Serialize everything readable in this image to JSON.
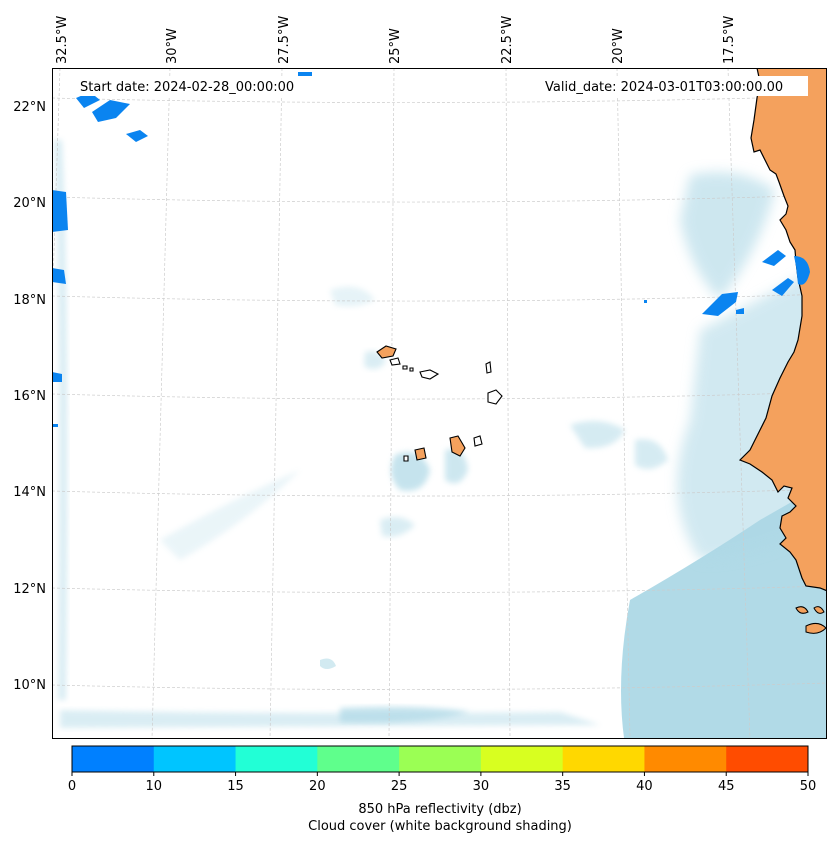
{
  "header": {
    "start_date": "Start date: 2024-02-28_00:00:00",
    "valid_date": "Valid_date: 2024-03-01T03:00:00.00"
  },
  "axes": {
    "top_labels": [
      "32.5°W",
      "30°W",
      "27.5°W",
      "25°W",
      "22.5°W",
      "20°W",
      "17.5°W"
    ],
    "left_labels": [
      "22°N",
      "20°N",
      "18°N",
      "16°N",
      "14°N",
      "12°N",
      "10°N"
    ]
  },
  "colorbar": {
    "ticks": [
      "0",
      "10",
      "15",
      "20",
      "25",
      "30",
      "35",
      "40",
      "45",
      "50"
    ],
    "colors": [
      "#0080ff",
      "#00c5ff",
      "#22ffd6",
      "#5fff8c",
      "#9bff54",
      "#d8ff20",
      "#ffd800",
      "#ff8a00",
      "#ff4c00"
    ],
    "label_line1": "850 hPa reflectivity (dbz)",
    "label_line2": "Cloud cover (white background shading)"
  },
  "colors": {
    "land": "#f4a15d",
    "cloud": "#add8e6",
    "echo": "#0a84f0",
    "grid": "#cccccc"
  }
}
